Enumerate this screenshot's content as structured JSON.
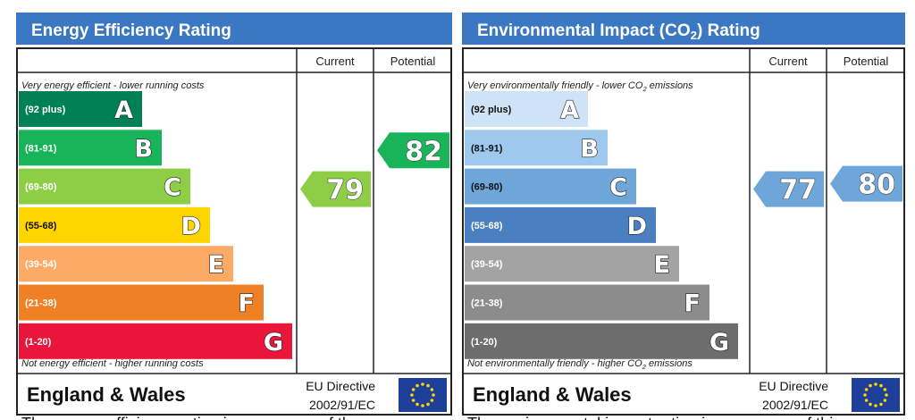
{
  "chart_data": [
    {
      "type": "bar",
      "title": "Energy Efficiency Rating",
      "columns": [
        "Current",
        "Potential"
      ],
      "top_note": "Very energy efficient - lower running costs",
      "bottom_note": "Not energy efficient - higher running costs",
      "bands": [
        {
          "letter": "A",
          "range": "(92 plus)",
          "color": "#008054"
        },
        {
          "letter": "B",
          "range": "(81-91)",
          "color": "#19b459"
        },
        {
          "letter": "C",
          "range": "(69-80)",
          "color": "#8dce46"
        },
        {
          "letter": "D",
          "range": "(55-68)",
          "color": "#ffd500"
        },
        {
          "letter": "E",
          "range": "(39-54)",
          "color": "#fcaa65"
        },
        {
          "letter": "F",
          "range": "(21-38)",
          "color": "#ef8023"
        },
        {
          "letter": "G",
          "range": "(1-20)",
          "color": "#e9153b"
        }
      ],
      "current": {
        "value": 79,
        "band": "C",
        "color": "#8dce46"
      },
      "potential": {
        "value": 82,
        "band": "B",
        "color": "#19b459"
      },
      "region": "England & Wales",
      "directive_line1": "EU Directive",
      "directive_line2": "2002/91/EC",
      "footer_text": "The energy efficiency rating is a measure of the"
    },
    {
      "type": "bar",
      "title": "Environmental Impact (CO",
      "title_sub": "2",
      "title_end": ") Rating",
      "columns": [
        "Current",
        "Potential"
      ],
      "top_note": "Very environmentally friendly - lower CO",
      "top_note_sub": "2",
      "top_note_end": " emissions",
      "bottom_note": "Not environmentally friendly - higher CO",
      "bottom_note_sub": "2",
      "bottom_note_end": " emissions",
      "bands": [
        {
          "letter": "A",
          "range": "(92 plus)",
          "color": "#cfe3f6"
        },
        {
          "letter": "B",
          "range": "(81-91)",
          "color": "#9ec8ee"
        },
        {
          "letter": "C",
          "range": "(69-80)",
          "color": "#6fa6da"
        },
        {
          "letter": "D",
          "range": "(55-68)",
          "color": "#4a7fc1"
        },
        {
          "letter": "E",
          "range": "(39-54)",
          "color": "#a3a3a3"
        },
        {
          "letter": "F",
          "range": "(21-38)",
          "color": "#8c8c8c"
        },
        {
          "letter": "G",
          "range": "(1-20)",
          "color": "#6d6d6d"
        }
      ],
      "current": {
        "value": 77,
        "band": "C",
        "color": "#6fa6da"
      },
      "potential": {
        "value": 80,
        "band": "C",
        "color": "#6fa6da"
      },
      "region": "England & Wales",
      "directive_line1": "EU Directive",
      "directive_line2": "2002/91/EC",
      "footer_text": "The environmental impact rating is a measure of this"
    }
  ],
  "colors": {
    "title_bar": "#3a78c3",
    "border": "#222222",
    "eu_flag_bg": "#1d3f9a",
    "eu_star": "#ffd500"
  },
  "icons": {
    "flag": "eu-flag-icon"
  }
}
